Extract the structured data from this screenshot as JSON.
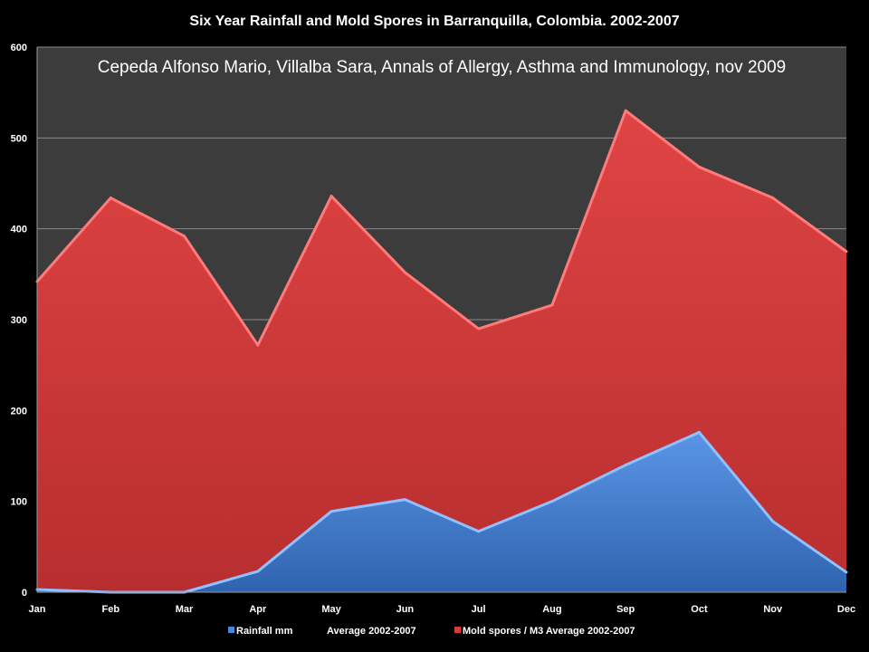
{
  "chart_data": {
    "type": "area",
    "title": "Six Year Rainfall and Mold Spores in Barranquilla, Colombia.  2002-2007",
    "annotation": "Cepeda  Alfonso Mario,  Villalba Sara, Annals of Allergy, Asthma and Immunology, nov 2009",
    "categories": [
      "Jan",
      "Feb",
      "Mar",
      "Apr",
      "May",
      "Jun",
      "Jul",
      "Aug",
      "Sep",
      "Oct",
      "Nov",
      "Dec"
    ],
    "series": [
      {
        "name": "Mold spores / M3 Average 2002-2007",
        "color": "#d63c3c",
        "values": [
          342,
          434,
          392,
          272,
          436,
          352,
          290,
          316,
          530,
          468,
          434,
          375
        ]
      },
      {
        "name": "Rainfall mm    Average 2002-2007",
        "color": "#4a86d8",
        "values": [
          3,
          0,
          0,
          23,
          89,
          102,
          67,
          100,
          140,
          176,
          78,
          22
        ]
      }
    ],
    "legend": [
      {
        "label": "Rainfall mm",
        "suffix": "Average 2002-2007",
        "color": "#4a86d8"
      },
      {
        "label": "Mold spores / M3 Average 2002-2007",
        "suffix": "",
        "color": "#d63c3c"
      }
    ],
    "ylim": [
      0,
      600
    ],
    "yticks": [
      0,
      100,
      200,
      300,
      400,
      500,
      600
    ],
    "grid": true,
    "legend_position": "bottom",
    "plot_background": "#3c3c3c",
    "xlabel": "",
    "ylabel": ""
  }
}
